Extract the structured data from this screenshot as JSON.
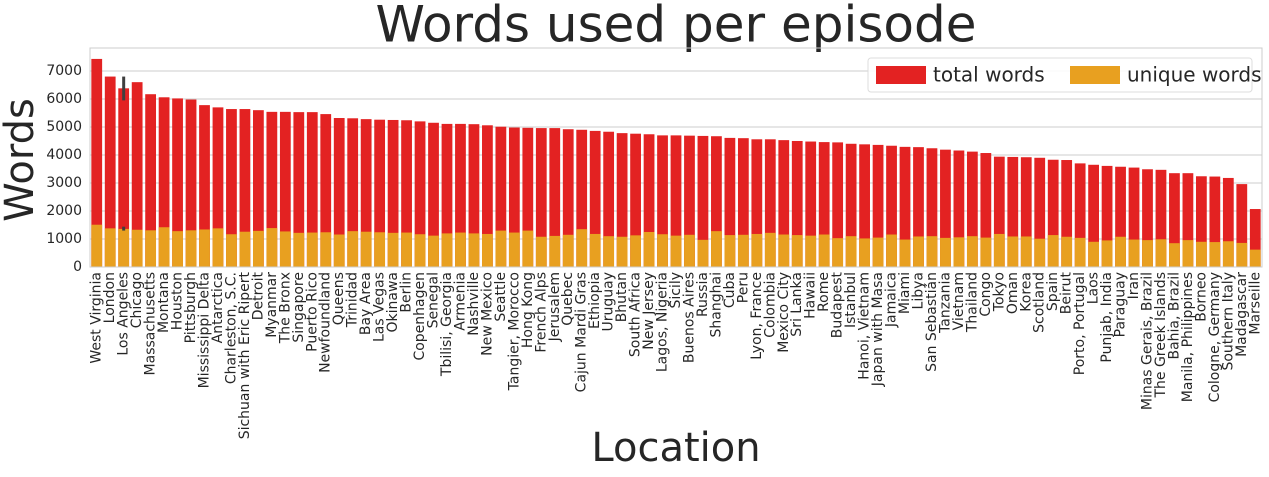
{
  "chart_data": {
    "type": "bar",
    "title": "Words used per episode",
    "x_label": "Location",
    "y_label": "Words",
    "categories": [
      "West Virginia",
      "London",
      "Los Angeles",
      "Chicago",
      "Massachusetts",
      "Montana",
      "Houston",
      "Pittsburgh",
      "Mississippi Delta",
      "Antarctica",
      "Charleston, S.C.",
      "Sichuan with Eric Ripert",
      "Detroit",
      "Myanmar",
      "The Bronx",
      "Singapore",
      "Puerto Rico",
      "Newfoundland",
      "Queens",
      "Trinidad",
      "Bay Area",
      "Las Vegas",
      "Okinawa",
      "Berlin",
      "Copenhagen",
      "Senegal",
      "Tbilisi, Georgia",
      "Armenia",
      "Nashville",
      "New Mexico",
      "Seattle",
      "Tangier, Morocco",
      "Hong Kong",
      "French Alps",
      "Jerusalem",
      "Quebec",
      "Cajun Mardi Gras",
      "Ethiopia",
      "Uruguay",
      "Bhutan",
      "South Africa",
      "New Jersey",
      "Lagos, Nigeria",
      "Sicily",
      "Buenos Aires",
      "Russia",
      "Shanghai",
      "Cuba",
      "Peru",
      "Lyon, France",
      "Colombia",
      "Mexico City",
      "Sri Lanka",
      "Hawaii",
      "Rome",
      "Budapest",
      "Istanbul",
      "Hanoi, Vietnam",
      "Japan with Masa",
      "Jamaica",
      "Miami",
      "Libya",
      "San Sebastián",
      "Tanzania",
      "Vietnam",
      "Thailand",
      "Congo",
      "Tokyo",
      "Oman",
      "Korea",
      "Scotland",
      "Spain",
      "Beirut",
      "Porto, Portugal",
      "Laos",
      "Punjab, India",
      "Paraguay",
      "Iran",
      "Minas Gerais, Brazil",
      "The Greek Islands",
      "Bahia, Brazil",
      "Manila, Philippines",
      "Borneo",
      "Cologne, Germany",
      "Southern Italy",
      "Madagascar",
      "Marseille"
    ],
    "series": [
      {
        "name": "total words",
        "color": "#e32222",
        "values": [
          7430,
          6800,
          6380,
          6600,
          6170,
          6060,
          6020,
          5980,
          5780,
          5700,
          5640,
          5640,
          5600,
          5540,
          5540,
          5530,
          5530,
          5460,
          5320,
          5310,
          5280,
          5260,
          5250,
          5240,
          5200,
          5150,
          5110,
          5110,
          5100,
          5060,
          5010,
          4980,
          4970,
          4960,
          4960,
          4920,
          4900,
          4860,
          4830,
          4780,
          4760,
          4740,
          4700,
          4700,
          4690,
          4680,
          4670,
          4610,
          4600,
          4560,
          4560,
          4530,
          4500,
          4480,
          4460,
          4450,
          4400,
          4380,
          4360,
          4330,
          4290,
          4280,
          4240,
          4190,
          4160,
          4120,
          4070,
          3940,
          3930,
          3920,
          3900,
          3830,
          3820,
          3700,
          3650,
          3610,
          3580,
          3550,
          3490,
          3470,
          3350,
          3350,
          3240,
          3230,
          3180,
          2960,
          2070
        ]
      },
      {
        "name": "unique words",
        "color": "#e8a020",
        "values": [
          1510,
          1380,
          1360,
          1330,
          1310,
          1420,
          1280,
          1310,
          1340,
          1380,
          1170,
          1260,
          1290,
          1390,
          1270,
          1220,
          1230,
          1240,
          1160,
          1280,
          1260,
          1240,
          1220,
          1230,
          1170,
          1120,
          1200,
          1230,
          1200,
          1180,
          1300,
          1230,
          1300,
          1080,
          1110,
          1150,
          1350,
          1180,
          1100,
          1080,
          1130,
          1250,
          1170,
          1120,
          1150,
          970,
          1280,
          1140,
          1150,
          1180,
          1220,
          1160,
          1140,
          1120,
          1160,
          1030,
          1100,
          1020,
          1050,
          1160,
          980,
          1090,
          1100,
          1040,
          1060,
          1100,
          1050,
          1180,
          1090,
          1090,
          1010,
          1140,
          1080,
          1040,
          900,
          950,
          1080,
          980,
          960,
          990,
          850,
          960,
          900,
          890,
          920,
          860,
          620
        ]
      }
    ],
    "error_bars": [
      {
        "series_index": 0,
        "category_index": 2,
        "low": 5950,
        "high": 6800
      },
      {
        "series_index": 1,
        "category_index": 2,
        "low": 1300,
        "high": 1440
      }
    ],
    "ylim": [
      0,
      7820
    ],
    "yticks": [
      0,
      1000,
      2000,
      3000,
      4000,
      5000,
      6000,
      7000
    ],
    "grid": true,
    "legend": "upper right",
    "legend_columns": 2
  }
}
